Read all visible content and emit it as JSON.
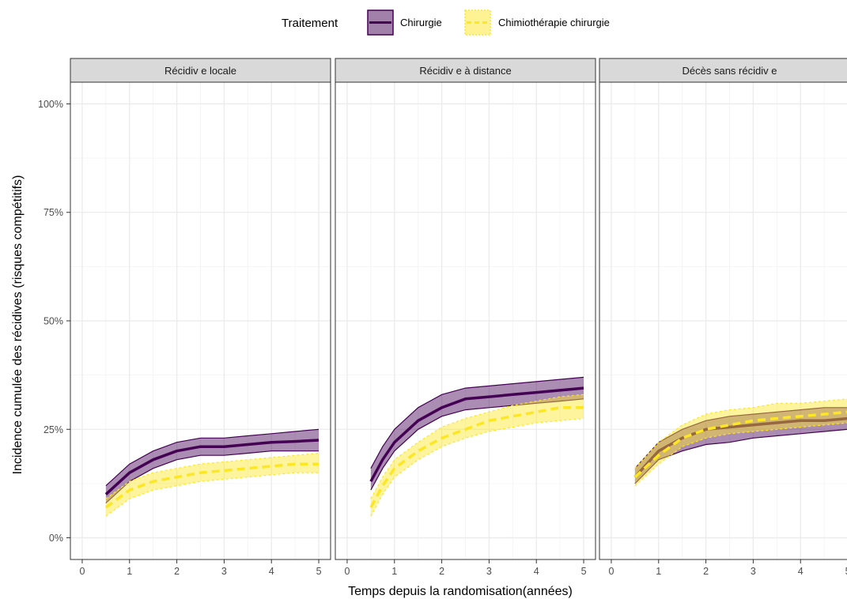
{
  "chart_data": {
    "type": "area",
    "xlabel": "Temps depuis la randomisation(années)",
    "ylabel": "Incidence cumulée des récidives (risques compétitifs)",
    "xlim": [
      -0.25,
      5.25
    ],
    "ylim": [
      -0.05,
      1.05
    ],
    "x_ticks": [
      0,
      1,
      2,
      3,
      4,
      5
    ],
    "y_ticks": [
      0,
      0.25,
      0.5,
      0.75,
      1.0
    ],
    "y_tick_labels": [
      "0%",
      "25%",
      "50%",
      "75%",
      "100%"
    ],
    "grid": true,
    "legend": {
      "title": "Traitement",
      "position": "top",
      "entries": [
        "Chirurgie",
        "Chimiothérapie chirurgie"
      ]
    },
    "panels": [
      {
        "strip": "Récidiv e locale",
        "series": [
          {
            "name": "Chirurgie",
            "x": [
              0.5,
              1,
              1.5,
              2,
              2.5,
              3,
              3.5,
              4,
              4.5,
              5
            ],
            "y": [
              0.1,
              0.15,
              0.18,
              0.2,
              0.21,
              0.21,
              0.215,
              0.22,
              0.222,
              0.225
            ],
            "lower": [
              0.08,
              0.13,
              0.16,
              0.18,
              0.19,
              0.19,
              0.195,
              0.2,
              0.2,
              0.2
            ],
            "upper": [
              0.12,
              0.17,
              0.2,
              0.22,
              0.23,
              0.23,
              0.235,
              0.24,
              0.245,
              0.25
            ]
          },
          {
            "name": "Chimiothérapie chirurgie",
            "x": [
              0.5,
              1,
              1.5,
              2,
              2.5,
              3,
              3.5,
              4,
              4.5,
              5
            ],
            "y": [
              0.07,
              0.11,
              0.13,
              0.14,
              0.15,
              0.155,
              0.16,
              0.165,
              0.17,
              0.17
            ],
            "lower": [
              0.05,
              0.09,
              0.11,
              0.12,
              0.13,
              0.135,
              0.14,
              0.145,
              0.15,
              0.15
            ],
            "upper": [
              0.09,
              0.13,
              0.15,
              0.16,
              0.17,
              0.175,
              0.18,
              0.185,
              0.19,
              0.195
            ]
          }
        ]
      },
      {
        "strip": "Récidiv e à distance",
        "series": [
          {
            "name": "Chirurgie",
            "x": [
              0.5,
              0.75,
              1,
              1.5,
              2,
              2.5,
              3,
              3.5,
              4,
              4.5,
              5
            ],
            "y": [
              0.13,
              0.18,
              0.22,
              0.27,
              0.3,
              0.32,
              0.325,
              0.33,
              0.335,
              0.34,
              0.345
            ],
            "lower": [
              0.11,
              0.16,
              0.2,
              0.25,
              0.28,
              0.295,
              0.3,
              0.305,
              0.31,
              0.315,
              0.32
            ],
            "upper": [
              0.16,
              0.21,
              0.25,
              0.3,
              0.33,
              0.345,
              0.35,
              0.355,
              0.36,
              0.365,
              0.37
            ]
          },
          {
            "name": "Chimiothérapie chirurgie",
            "x": [
              0.5,
              0.75,
              1,
              1.5,
              2,
              2.5,
              3,
              3.5,
              4,
              4.5,
              5
            ],
            "y": [
              0.07,
              0.12,
              0.16,
              0.2,
              0.23,
              0.25,
              0.27,
              0.28,
              0.29,
              0.3,
              0.3
            ],
            "lower": [
              0.05,
              0.1,
              0.14,
              0.18,
              0.21,
              0.23,
              0.245,
              0.255,
              0.265,
              0.27,
              0.275
            ],
            "upper": [
              0.09,
              0.14,
              0.18,
              0.22,
              0.255,
              0.275,
              0.29,
              0.305,
              0.315,
              0.325,
              0.33
            ]
          }
        ]
      },
      {
        "strip": "Décès sans récidiv e",
        "series": [
          {
            "name": "Chirurgie",
            "x": [
              0.5,
              1,
              1.5,
              2,
              2.5,
              3,
              3.5,
              4,
              4.5,
              5
            ],
            "y": [
              0.14,
              0.2,
              0.23,
              0.25,
              0.255,
              0.26,
              0.265,
              0.27,
              0.27,
              0.275
            ],
            "lower": [
              0.125,
              0.18,
              0.2,
              0.215,
              0.22,
              0.23,
              0.235,
              0.24,
              0.245,
              0.25
            ],
            "upper": [
              0.16,
              0.22,
              0.25,
              0.27,
              0.28,
              0.285,
              0.29,
              0.295,
              0.3,
              0.3
            ]
          },
          {
            "name": "Chimiothérapie chirurgie",
            "x": [
              0.5,
              1,
              1.5,
              2,
              2.5,
              3,
              3.5,
              4,
              4.5,
              5
            ],
            "y": [
              0.14,
              0.19,
              0.23,
              0.25,
              0.26,
              0.27,
              0.275,
              0.28,
              0.285,
              0.29
            ],
            "lower": [
              0.12,
              0.17,
              0.21,
              0.23,
              0.24,
              0.245,
              0.25,
              0.255,
              0.26,
              0.265
            ],
            "upper": [
              0.16,
              0.22,
              0.26,
              0.285,
              0.295,
              0.3,
              0.31,
              0.31,
              0.315,
              0.32
            ]
          }
        ]
      }
    ]
  },
  "colors": {
    "chirurgie_line": "#440154",
    "chirurgie_fill": "#440154",
    "chimio_line": "#FDE725",
    "chimio_fill": "#FDE725",
    "strip_bg": "#D9D9D9",
    "grid": "#EBEBEB"
  }
}
